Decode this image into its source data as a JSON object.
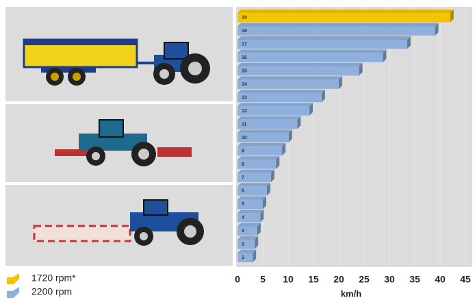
{
  "chart_data": {
    "type": "bar",
    "orientation": "horizontal",
    "x_label": "km/h",
    "categories": [
      "1",
      "2",
      "3",
      "4",
      "5",
      "6",
      "7",
      "8",
      "9",
      "10",
      "11",
      "12",
      "13",
      "14",
      "15",
      "16",
      "17",
      "18",
      "19"
    ],
    "series": [
      {
        "name": "1720 rpm*",
        "color": "#f5c400",
        "values": [
          null,
          null,
          null,
          null,
          null,
          null,
          null,
          null,
          null,
          null,
          null,
          null,
          null,
          null,
          null,
          null,
          null,
          null,
          42
        ]
      },
      {
        "name": "2200 rpm",
        "color": "#8fb0dc",
        "values": [
          3,
          3.4,
          3.9,
          4.5,
          5,
          5.8,
          6.6,
          7.6,
          8.8,
          10.1,
          11.8,
          14.2,
          16.6,
          20,
          24,
          28.7,
          33.5,
          39,
          null
        ]
      }
    ],
    "xlim": [
      0,
      45
    ],
    "xticks": [
      0,
      5,
      10,
      15,
      20,
      25,
      30,
      35,
      40,
      45
    ]
  }
}
